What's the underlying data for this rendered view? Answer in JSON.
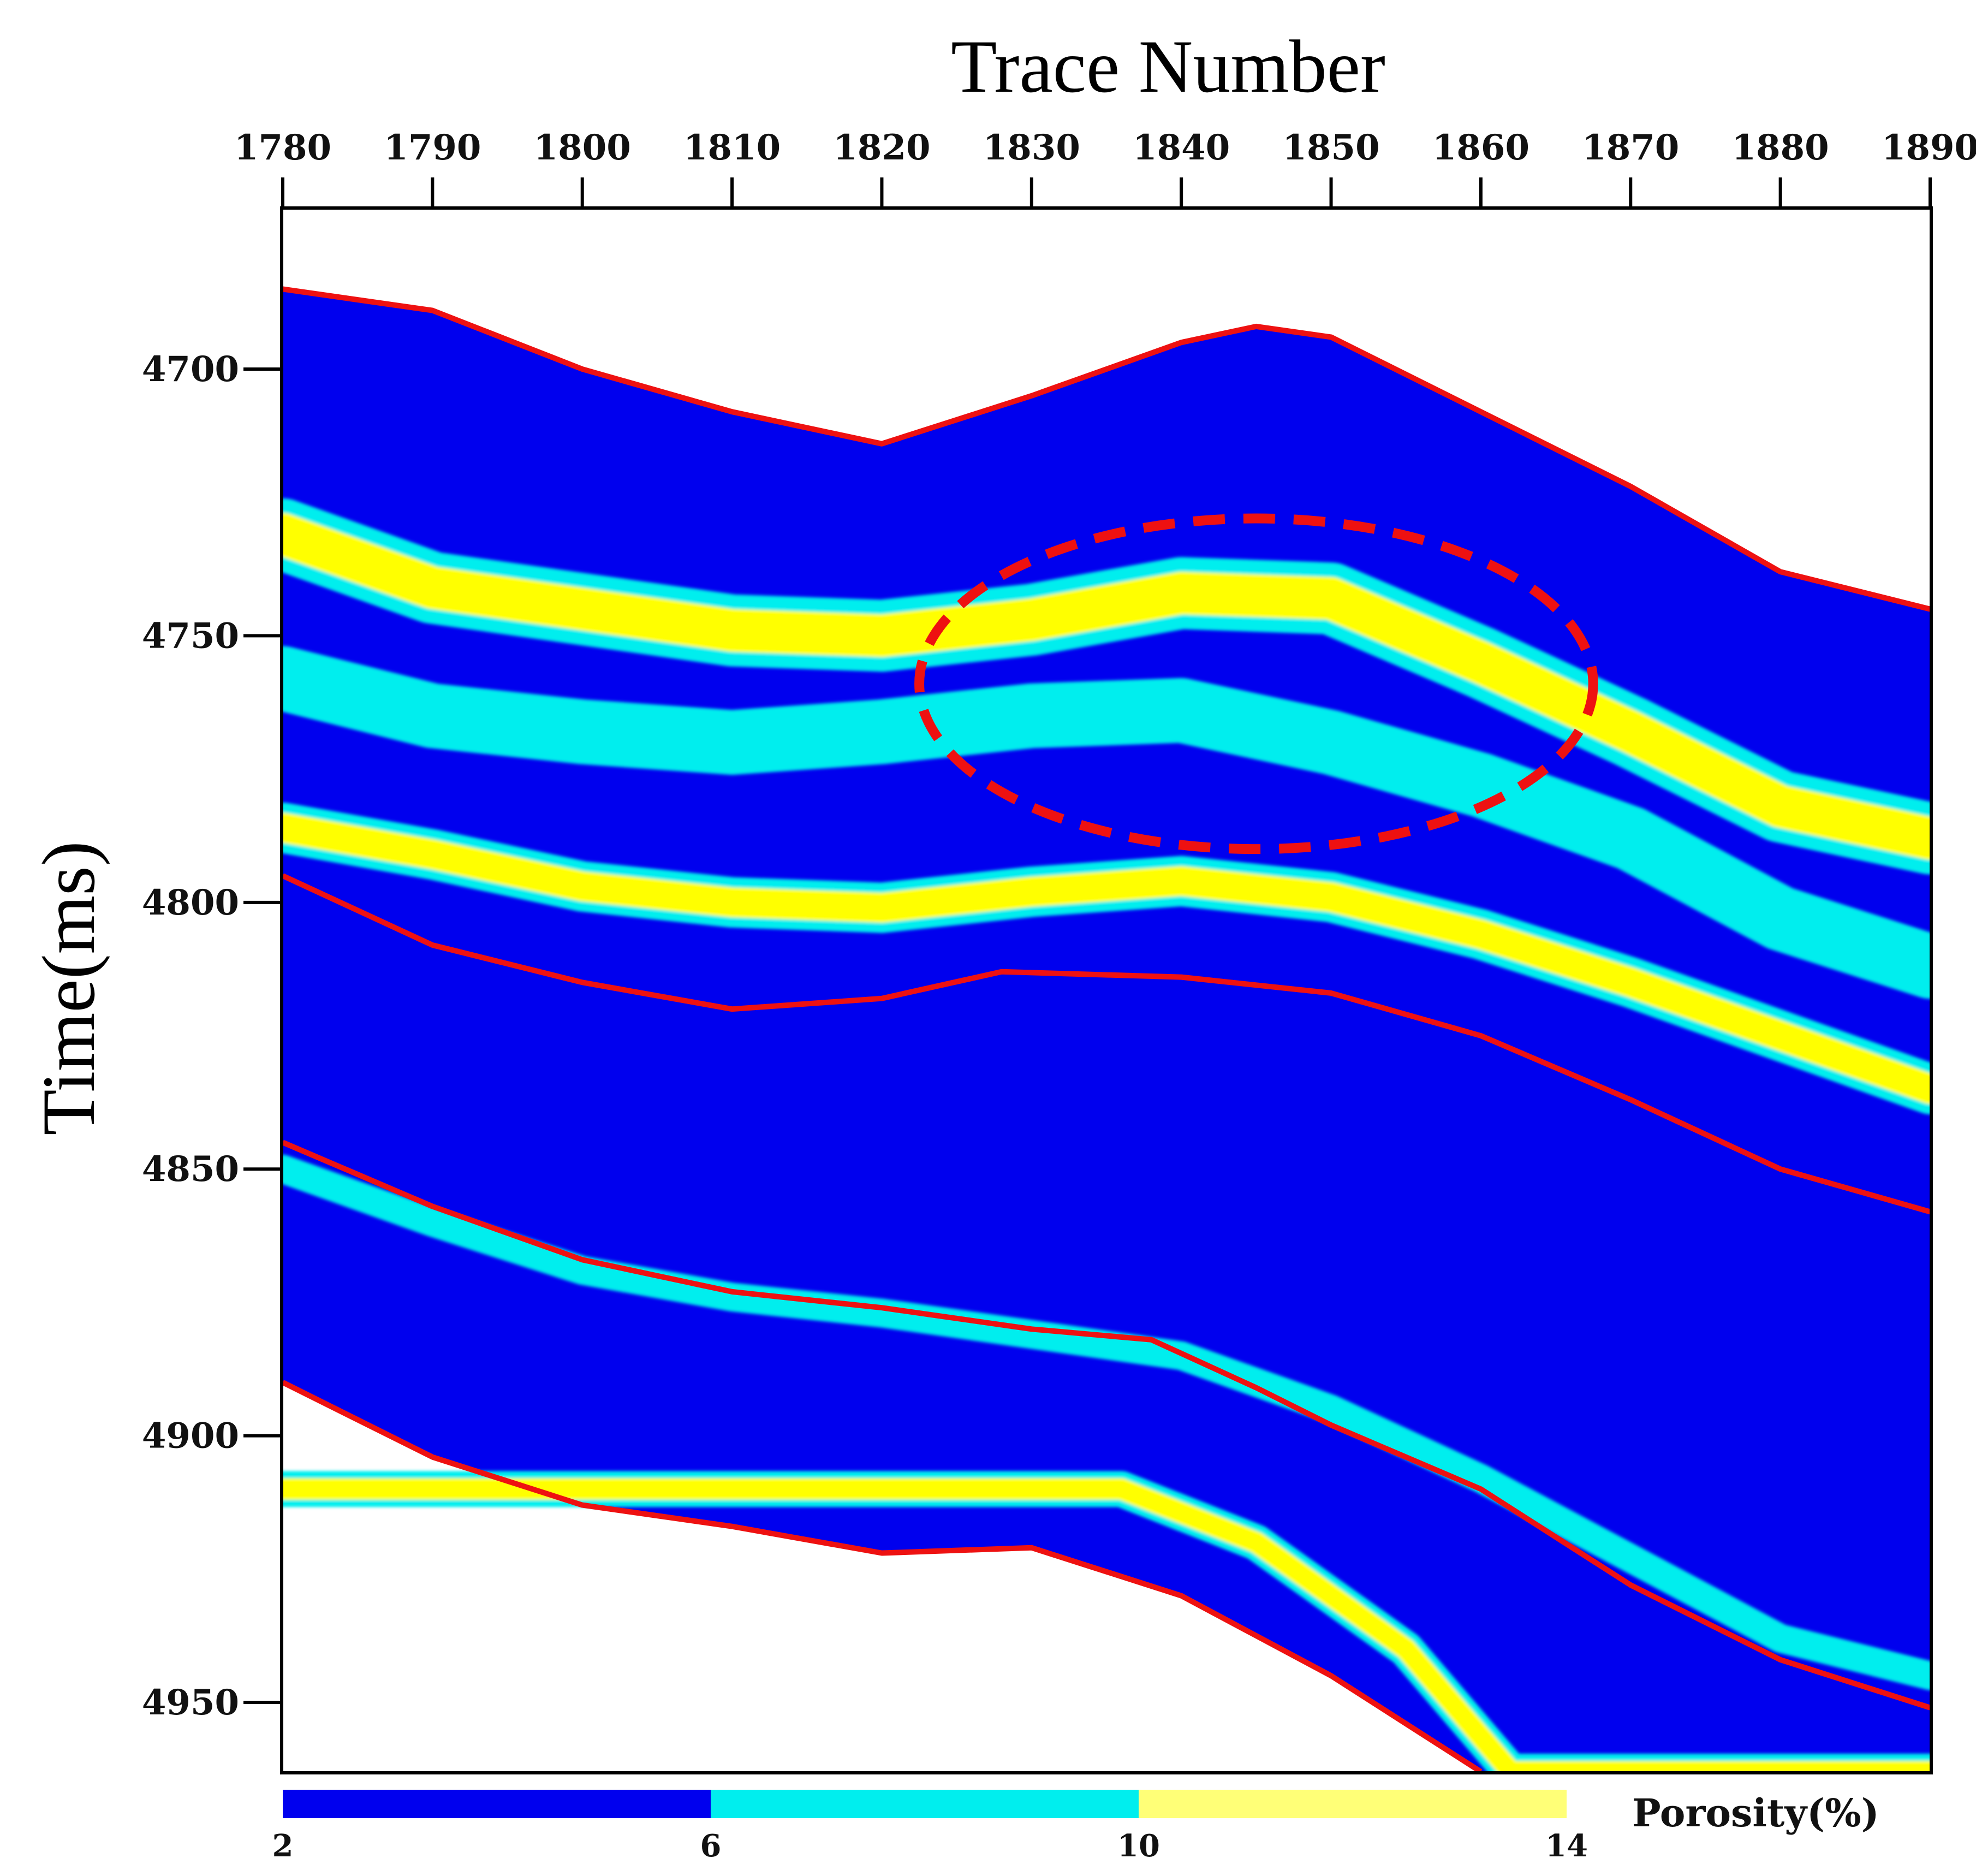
{
  "chart_data": {
    "type": "heatmap",
    "title": "",
    "xlabel": "Trace Number",
    "ylabel": "Time(ms)",
    "xlim": [
      1780,
      1890
    ],
    "ylim": [
      4670,
      4963
    ],
    "x_ticks": [
      1780,
      1790,
      1800,
      1810,
      1820,
      1830,
      1840,
      1850,
      1860,
      1870,
      1880,
      1890
    ],
    "y_ticks": [
      4700,
      4750,
      4800,
      4850,
      4900,
      4950
    ],
    "x_axis_position": "top",
    "y_axis_inverted": true,
    "colorbar": {
      "label": "Porosity(%)",
      "ticks": [
        2,
        6,
        10,
        14
      ],
      "bins": [
        {
          "from": 2,
          "to": 6,
          "color": "#0000ee"
        },
        {
          "from": 6,
          "to": 10,
          "color": "#00eeee"
        },
        {
          "from": 10,
          "to": 14,
          "color": "#ffff77"
        }
      ],
      "placement": "bottom"
    },
    "colors": {
      "low": "#0000ee",
      "mid": "#00eeee",
      "high": "#ffff00",
      "horizon": "#ee1111"
    },
    "horizons": [
      {
        "points": [
          [
            1780,
            4685
          ],
          [
            1790,
            4689
          ],
          [
            1800,
            4700
          ],
          [
            1810,
            4708
          ],
          [
            1820,
            4714
          ],
          [
            1830,
            4705
          ],
          [
            1840,
            4695
          ],
          [
            1845,
            4692
          ],
          [
            1850,
            4694
          ],
          [
            1860,
            4708
          ],
          [
            1870,
            4722
          ],
          [
            1880,
            4738
          ],
          [
            1890,
            4745
          ]
        ]
      },
      {
        "points": [
          [
            1780,
            4795
          ],
          [
            1790,
            4808
          ],
          [
            1800,
            4815
          ],
          [
            1810,
            4820
          ],
          [
            1820,
            4818
          ],
          [
            1828,
            4813
          ],
          [
            1840,
            4814
          ],
          [
            1850,
            4817
          ],
          [
            1860,
            4825
          ],
          [
            1870,
            4837
          ],
          [
            1880,
            4850
          ],
          [
            1890,
            4858
          ]
        ]
      },
      {
        "points": [
          [
            1780,
            4845
          ],
          [
            1790,
            4857
          ],
          [
            1800,
            4867
          ],
          [
            1810,
            4873
          ],
          [
            1820,
            4876
          ],
          [
            1830,
            4880
          ],
          [
            1838,
            4882
          ],
          [
            1845,
            4891
          ],
          [
            1850,
            4898
          ],
          [
            1860,
            4910
          ],
          [
            1870,
            4928
          ],
          [
            1880,
            4942
          ],
          [
            1890,
            4951
          ]
        ]
      },
      {
        "points": [
          [
            1780,
            4890
          ],
          [
            1790,
            4904
          ],
          [
            1800,
            4913
          ],
          [
            1810,
            4917
          ],
          [
            1820,
            4922
          ],
          [
            1830,
            4921
          ],
          [
            1840,
            4930
          ],
          [
            1850,
            4945
          ],
          [
            1860,
            4963
          ]
        ]
      }
    ],
    "body_envelope": {
      "top": "horizon_1",
      "bottom": "horizon_4"
    },
    "layers": [
      {
        "porosity_class": "high",
        "points": [
          [
            1780,
            4731
          ],
          [
            1790,
            4741
          ],
          [
            1800,
            4745
          ],
          [
            1810,
            4749
          ],
          [
            1820,
            4750
          ],
          [
            1830,
            4747
          ],
          [
            1840,
            4742
          ],
          [
            1850,
            4743
          ],
          [
            1860,
            4755
          ],
          [
            1870,
            4768
          ],
          [
            1880,
            4782
          ],
          [
            1890,
            4788
          ]
        ],
        "thickness_ms": 10
      },
      {
        "porosity_class": "mid",
        "points": [
          [
            1780,
            4758
          ],
          [
            1790,
            4765
          ],
          [
            1800,
            4768
          ],
          [
            1810,
            4770
          ],
          [
            1820,
            4768
          ],
          [
            1830,
            4765
          ],
          [
            1840,
            4764
          ],
          [
            1850,
            4770
          ],
          [
            1860,
            4778
          ],
          [
            1870,
            4788
          ],
          [
            1880,
            4803
          ],
          [
            1890,
            4812
          ]
        ],
        "thickness_ms": 9
      },
      {
        "porosity_class": "high",
        "points": [
          [
            1780,
            4786
          ],
          [
            1790,
            4791
          ],
          [
            1800,
            4797
          ],
          [
            1810,
            4800
          ],
          [
            1820,
            4801
          ],
          [
            1830,
            4798
          ],
          [
            1840,
            4796
          ],
          [
            1850,
            4799
          ],
          [
            1860,
            4806
          ],
          [
            1870,
            4815
          ],
          [
            1880,
            4825
          ],
          [
            1890,
            4835
          ]
        ],
        "thickness_ms": 7
      },
      {
        "porosity_class": "mid",
        "points": [
          [
            1780,
            4850
          ],
          [
            1790,
            4860
          ],
          [
            1800,
            4869
          ],
          [
            1810,
            4874
          ],
          [
            1820,
            4877
          ],
          [
            1830,
            4881
          ],
          [
            1840,
            4885
          ],
          [
            1850,
            4895
          ],
          [
            1860,
            4908
          ],
          [
            1870,
            4923
          ],
          [
            1880,
            4938
          ],
          [
            1890,
            4945
          ]
        ],
        "thickness_ms": 4
      },
      {
        "porosity_class": "high",
        "points": [
          [
            1836,
            4910
          ],
          [
            1845,
            4920
          ],
          [
            1855,
            4940
          ],
          [
            1862,
            4963
          ]
        ],
        "thickness_ms": 5
      }
    ],
    "highlight_ellipse": {
      "center": [
        1845,
        4759
      ],
      "radius_traces": 22.5,
      "radius_ms": 31,
      "style": "dashed",
      "color": "#ee1111"
    }
  }
}
